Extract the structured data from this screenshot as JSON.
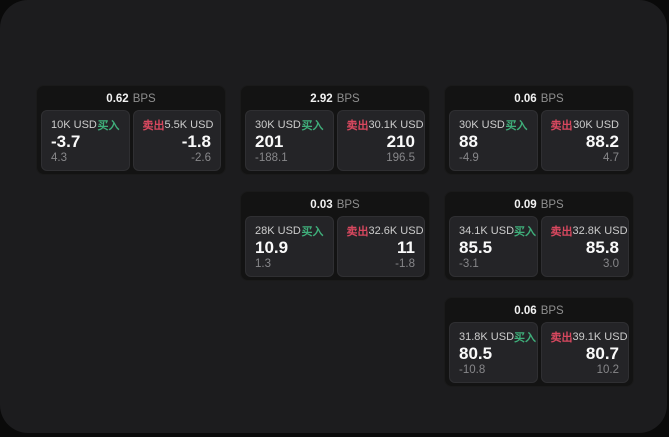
{
  "labels": {
    "bps_unit": "BPS",
    "buy": "买入",
    "sell": "卖出"
  },
  "colors": {
    "panel_bg": "#1c1c1e",
    "card_bg": "#131313",
    "tile_bg": "#242427",
    "buy_green": "#3fae7a",
    "sell_red": "#d8485f"
  },
  "cards": [
    {
      "bps": "0.62",
      "buy": {
        "amount": "10K USD",
        "value": "-3.7",
        "sub_value": "4.3"
      },
      "sell": {
        "amount": "5.5K USD",
        "value": "-1.8",
        "sub_value": "-2.6"
      }
    },
    {
      "bps": "2.92",
      "buy": {
        "amount": "30K USD",
        "value": "201",
        "sub_value": "-188.1"
      },
      "sell": {
        "amount": "30.1K USD",
        "value": "210",
        "sub_value": "196.5"
      }
    },
    {
      "bps": "0.06",
      "buy": {
        "amount": "30K USD",
        "value": "88",
        "sub_value": "-4.9"
      },
      "sell": {
        "amount": "30K USD",
        "value": "88.2",
        "sub_value": "4.7"
      }
    },
    {
      "bps": "0.03",
      "buy": {
        "amount": "28K USD",
        "value": "10.9",
        "sub_value": "1.3"
      },
      "sell": {
        "amount": "32.6K USD",
        "value": "11",
        "sub_value": "-1.8"
      }
    },
    {
      "bps": "0.09",
      "buy": {
        "amount": "34.1K USD",
        "value": "85.5",
        "sub_value": "-3.1"
      },
      "sell": {
        "amount": "32.8K USD",
        "value": "85.8",
        "sub_value": "3.0"
      }
    },
    {
      "bps": "0.06",
      "buy": {
        "amount": "31.8K USD",
        "value": "80.5",
        "sub_value": "-10.8"
      },
      "sell": {
        "amount": "39.1K USD",
        "value": "80.7",
        "sub_value": "10.2"
      }
    }
  ]
}
